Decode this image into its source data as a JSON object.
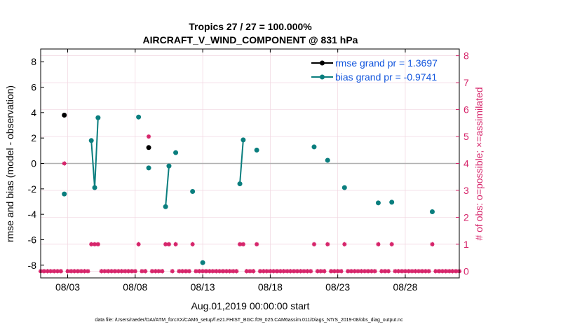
{
  "chart_data": {
    "type": "line",
    "title_line1": "Tropics 27 / 27 = 100.000%",
    "title_line2": "AIRCRAFT_V_WIND_COMPONENT @ 831 hPa",
    "xlabel": "Aug.01,2019 00:00:00 start",
    "ylabel_left": "rmse and bias (model - observation)",
    "ylabel_right": "# of obs: o=possible; ×=assimilated",
    "footer": "data file: /Users/raeder/DAI/ATM_forcXX/CAM6_setup/f.e21.FHIST_BGC.f09_025.CAM6assim.011/Diags_NTrS_2019-08/obs_diag_output.nc",
    "xlim": [
      1.0,
      32.0
    ],
    "ylim_left": [
      -9,
      9
    ],
    "ylim_right": [
      -0.25,
      8.25
    ],
    "x_ticks": [
      3,
      8,
      13,
      18,
      23,
      28
    ],
    "x_tick_labels": [
      "08/03",
      "08/08",
      "08/13",
      "08/18",
      "08/23",
      "08/28"
    ],
    "y_ticks_left": [
      -8,
      -6,
      -4,
      -2,
      0,
      2,
      4,
      6,
      8
    ],
    "y_tick_labels_left": [
      "-8",
      "-6",
      "-4",
      "-2",
      "0",
      "2",
      "4",
      "6",
      "8"
    ],
    "y_ticks_right": [
      0,
      1,
      2,
      3,
      4,
      5,
      6,
      7,
      8
    ],
    "y_tick_labels_right": [
      "0",
      "1",
      "2",
      "3",
      "4",
      "5",
      "6",
      "7",
      "8"
    ],
    "colors": {
      "rmse": "#000000",
      "bias": "#0a7e7e",
      "obs": "#d6246a",
      "legend_text": "#1155dd",
      "zero_line": "#b0b0b0",
      "grid": "#f1d6e0"
    },
    "series": [
      {
        "name": "rmse grand pr = 1.3697",
        "role": "rmse",
        "points": [
          [
            2.75,
            3.8
          ],
          [
            9.0,
            1.25
          ]
        ]
      },
      {
        "name": "bias grand pr = -0.9741",
        "role": "bias",
        "points": [
          [
            2.75,
            -2.4
          ],
          [
            4.75,
            1.8
          ],
          [
            5.0,
            -1.9
          ],
          [
            5.25,
            3.6
          ],
          [
            null,
            null
          ],
          [
            8.25,
            3.65
          ],
          [
            9.0,
            -0.35
          ],
          [
            10.25,
            -3.4
          ],
          [
            10.5,
            -0.2
          ],
          [
            11.0,
            0.85
          ],
          [
            12.25,
            -2.2
          ],
          [
            13.0,
            -7.8
          ],
          [
            15.75,
            -1.6
          ],
          [
            16.0,
            1.85
          ],
          [
            17.0,
            1.05
          ],
          [
            21.25,
            1.3
          ],
          [
            22.25,
            0.25
          ],
          [
            23.5,
            -1.9
          ],
          [
            26.0,
            -3.1
          ],
          [
            27.0,
            -3.05
          ],
          [
            30.0,
            -3.8
          ]
        ]
      }
    ],
    "obs_possible": [
      [
        2.75,
        4
      ],
      [
        9.0,
        5
      ],
      [
        4.75,
        1
      ],
      [
        5.0,
        1
      ],
      [
        5.25,
        1
      ],
      [
        8.25,
        1
      ],
      [
        10.25,
        1
      ],
      [
        10.5,
        1
      ],
      [
        11.0,
        1
      ],
      [
        12.25,
        1
      ],
      [
        15.75,
        1
      ],
      [
        16.0,
        1
      ],
      [
        17.0,
        1
      ],
      [
        21.25,
        1
      ],
      [
        22.25,
        1
      ],
      [
        23.5,
        1
      ],
      [
        26.0,
        1
      ],
      [
        27.0,
        1
      ],
      [
        30.0,
        1
      ]
    ],
    "obs_assimilated_zero_start": 1.0,
    "obs_assimilated_zero_end": 32.0,
    "obs_assimilated_zero_step": 0.25
  }
}
